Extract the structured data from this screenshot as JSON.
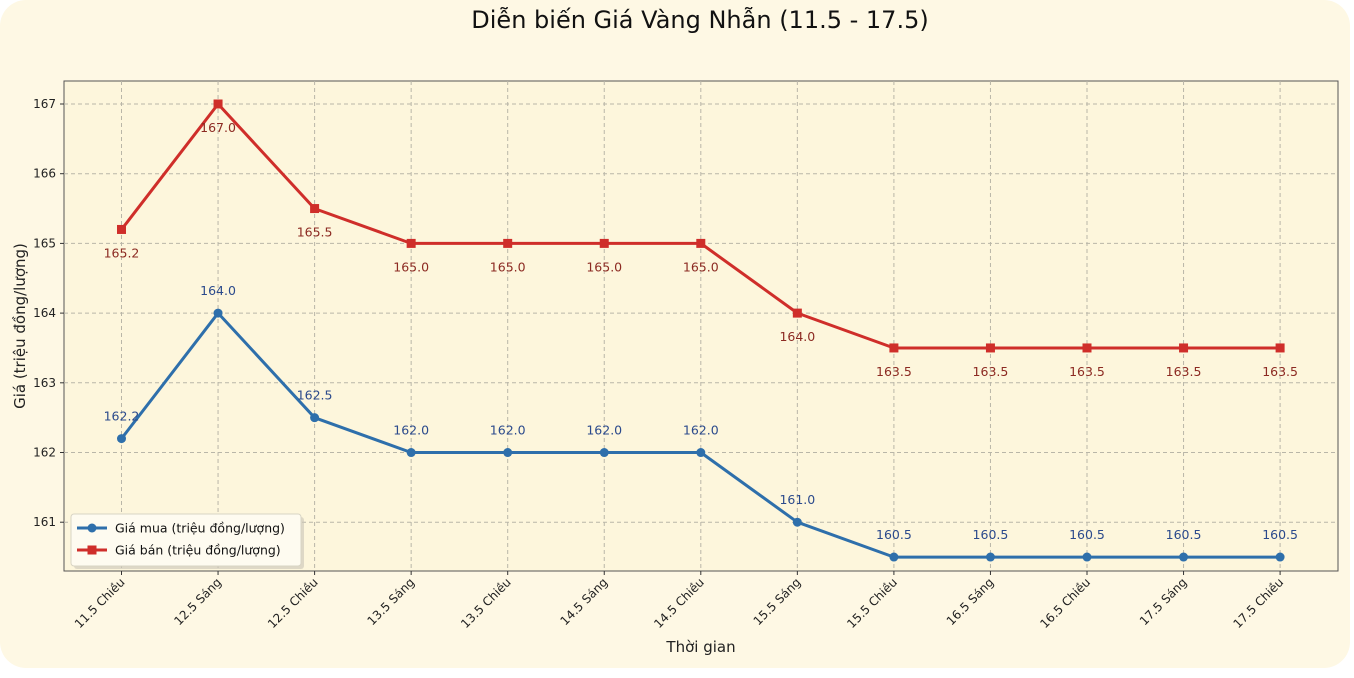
{
  "chart_data": {
    "type": "line",
    "title": "Diễn biến Giá Vàng Nhẫn (11.5 - 17.5)",
    "xlabel": "Thời gian",
    "ylabel": "Giá (triệu đồng/lượng)",
    "categories": [
      "11.5 Chiều",
      "12.5 Sáng",
      "12.5 Chiều",
      "13.5 Sáng",
      "13.5 Chiều",
      "14.5 Sáng",
      "14.5 Chiều",
      "15.5 Sáng",
      "15.5 Chiều",
      "16.5 Sáng",
      "16.5 Chiều",
      "17.5 Sáng",
      "17.5 Chiều"
    ],
    "ylim": [
      160.3,
      167.33
    ],
    "yticks": [
      161,
      162,
      163,
      164,
      165,
      166,
      167
    ],
    "grid": true,
    "legend_position": "bottom-left",
    "series": [
      {
        "name": "Giá mua (triệu đồng/lượng)",
        "color": "#2e6fab",
        "marker": "circle",
        "values": [
          162.2,
          164.0,
          162.5,
          162.0,
          162.0,
          162.0,
          162.0,
          161.0,
          160.5,
          160.5,
          160.5,
          160.5,
          160.5
        ],
        "labels": [
          "162.2",
          "164.0",
          "162.5",
          "162.0",
          "162.0",
          "162.0",
          "162.0",
          "161.0",
          "160.5",
          "160.5",
          "160.5",
          "160.5",
          "160.5"
        ]
      },
      {
        "name": "Giá bán (triệu đồng/lượng)",
        "color": "#cf2e2a",
        "marker": "square",
        "values": [
          165.2,
          167.0,
          165.5,
          165.0,
          165.0,
          165.0,
          165.0,
          164.0,
          163.5,
          163.5,
          163.5,
          163.5,
          163.5
        ],
        "labels": [
          "165.2",
          "167.0",
          "165.5",
          "165.0",
          "165.0",
          "165.0",
          "165.0",
          "164.0",
          "163.5",
          "163.5",
          "163.5",
          "163.5",
          "163.5"
        ]
      }
    ]
  }
}
